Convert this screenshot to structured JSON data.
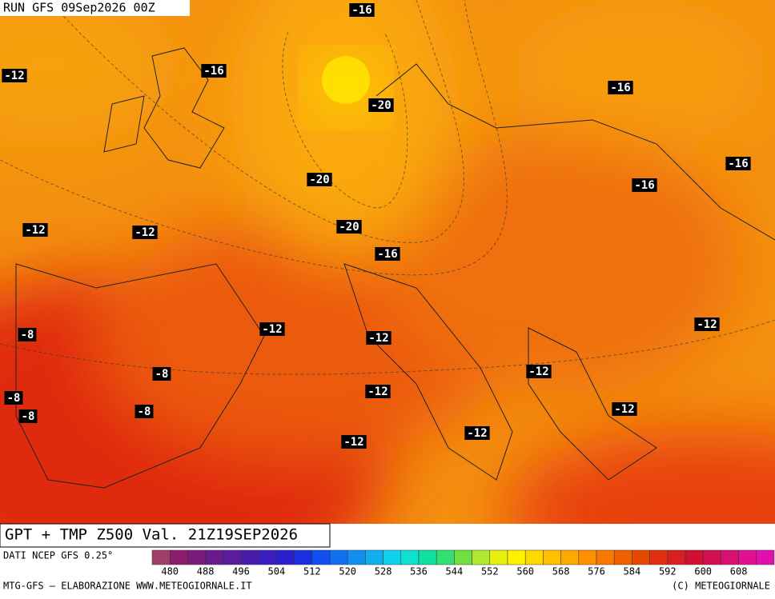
{
  "header": {
    "run": "RUN GFS 09Sep2026 00Z"
  },
  "title": "GPT + TMP Z500 Val. 21Z19SEP2026",
  "source": "DATI NCEP GFS 0.25°",
  "footer": {
    "left": "MTG-GFS — ELABORAZIONE WWW.METEOGIORNALE.IT",
    "right": "(C) METEOGIORNALE"
  },
  "contour_labels": [
    "-16",
    "-12",
    "-16",
    "-20",
    "-16",
    "-16",
    "-20",
    "-16",
    "-12",
    "-12",
    "-20",
    "-16",
    "-8",
    "-12",
    "-12",
    "-12",
    "-8",
    "-12",
    "-8",
    "-12",
    "-8",
    "-8",
    "-12",
    "-12",
    "-12"
  ],
  "colorbar": {
    "colors": [
      "#a0406a",
      "#8c1c6c",
      "#7a1a7c",
      "#6a1a8c",
      "#5a1c9c",
      "#4a1cac",
      "#3a1ec0",
      "#2a20d0",
      "#1a30e0",
      "#1050f0",
      "#1070f0",
      "#1090f0",
      "#10b0f0",
      "#10d0f0",
      "#10e0d0",
      "#10e0a0",
      "#30e070",
      "#70e040",
      "#b0e830",
      "#e8f010",
      "#fff000",
      "#ffd800",
      "#ffc000",
      "#ffa800",
      "#ff9000",
      "#f87800",
      "#f06000",
      "#e84800",
      "#e03010",
      "#d82020",
      "#d01030",
      "#d01050",
      "#d81070",
      "#e01090",
      "#e010b0"
    ],
    "labels": [
      "480",
      "488",
      "496",
      "504",
      "512",
      "520",
      "528",
      "536",
      "544",
      "552",
      "560",
      "568",
      "576",
      "584",
      "592",
      "600",
      "608"
    ]
  }
}
